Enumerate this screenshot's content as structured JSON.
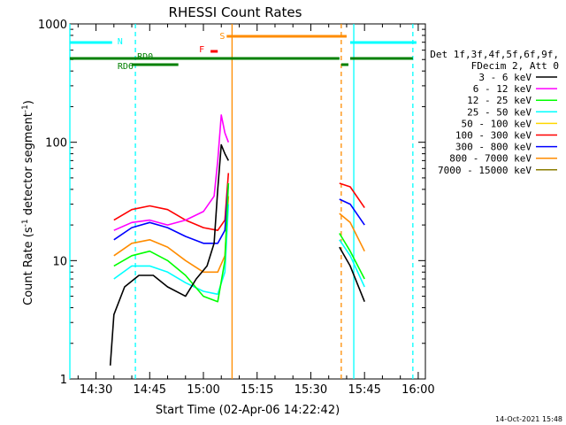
{
  "chart_data": {
    "type": "line",
    "title": "RHESSI Count Rates",
    "xlabel": "Start Time (02-Apr-06 14:22:42)",
    "ylabel_main": "Count Rate (s",
    "ylabel_sup1": "-1",
    "ylabel_mid": " detector segment",
    "ylabel_sup2": "-1",
    "ylabel_end": ")",
    "x_scale": "time",
    "x_range": [
      "14:22:42",
      "16:02:00"
    ],
    "y_scale": "log",
    "y_range": [
      1,
      1000
    ],
    "x_ticks": [
      "14:30",
      "14:45",
      "15:00",
      "15:15",
      "15:30",
      "15:45",
      "16:00"
    ],
    "y_ticks": [
      "1",
      "10",
      "100",
      "1000"
    ],
    "legend": {
      "placement": "right",
      "header": [
        "Det 1f,3f,4f,5f,6f,9f,",
        "FDecim 2, Att 0"
      ],
      "entries": [
        {
          "label": "3 - 6 keV",
          "color": "#000000"
        },
        {
          "label": "6 - 12 keV",
          "color": "#ff00ff"
        },
        {
          "label": "12 - 25 keV",
          "color": "#00ff00"
        },
        {
          "label": "25 - 50 keV",
          "color": "#00ffff"
        },
        {
          "label": "50 - 100 keV",
          "color": "#ffd700"
        },
        {
          "label": "100 - 300 keV",
          "color": "#ff0000"
        },
        {
          "label": "300 - 800 keV",
          "color": "#0000ff"
        },
        {
          "label": "800 - 7000 keV",
          "color": "#ff8c00"
        },
        {
          "label": "7000 - 15000 keV",
          "color": "#8b7d00"
        }
      ]
    },
    "series": [
      {
        "name": "100 - 300 keV",
        "color": "#ff0000",
        "segments": [
          [
            [
              "14:35",
              22
            ],
            [
              "14:40",
              27
            ],
            [
              "14:45",
              29
            ],
            [
              "14:50",
              27
            ],
            [
              "14:55",
              22
            ],
            [
              "15:00",
              19
            ],
            [
              "15:04",
              18
            ],
            [
              "15:06",
              22
            ],
            [
              "15:07",
              55
            ]
          ],
          [
            [
              "15:38",
              45
            ],
            [
              "15:41",
              42
            ],
            [
              "15:45",
              28
            ]
          ]
        ]
      },
      {
        "name": "300 - 800 keV",
        "color": "#0000ff",
        "segments": [
          [
            [
              "14:35",
              15
            ],
            [
              "14:40",
              19
            ],
            [
              "14:45",
              21
            ],
            [
              "14:50",
              19
            ],
            [
              "14:55",
              16
            ],
            [
              "15:00",
              14
            ],
            [
              "15:04",
              14
            ],
            [
              "15:06",
              18
            ],
            [
              "15:07",
              45
            ]
          ],
          [
            [
              "15:38",
              33
            ],
            [
              "15:41",
              30
            ],
            [
              "15:45",
              20
            ]
          ]
        ]
      },
      {
        "name": "6 - 12 keV",
        "color": "#ff00ff",
        "segments": [
          [
            [
              "14:35",
              18
            ],
            [
              "14:40",
              21
            ],
            [
              "14:45",
              22
            ],
            [
              "14:50",
              20
            ],
            [
              "14:55",
              22
            ],
            [
              "15:00",
              26
            ],
            [
              "15:03",
              35
            ],
            [
              "15:04",
              70
            ],
            [
              "15:05",
              170
            ],
            [
              "15:06",
              120
            ],
            [
              "15:07",
              100
            ]
          ]
        ]
      },
      {
        "name": "800 - 7000 keV",
        "color": "#ff8c00",
        "segments": [
          [
            [
              "14:35",
              11
            ],
            [
              "14:40",
              14
            ],
            [
              "14:45",
              15
            ],
            [
              "14:50",
              13
            ],
            [
              "14:55",
              10
            ],
            [
              "15:00",
              8
            ],
            [
              "15:04",
              8
            ],
            [
              "15:06",
              11
            ],
            [
              "15:07",
              35
            ]
          ],
          [
            [
              "15:38",
              25
            ],
            [
              "15:41",
              21
            ],
            [
              "15:45",
              12
            ]
          ]
        ]
      },
      {
        "name": "25 - 50 keV",
        "color": "#00ffff",
        "segments": [
          [
            [
              "14:35",
              7
            ],
            [
              "14:40",
              9
            ],
            [
              "14:45",
              9
            ],
            [
              "14:50",
              8
            ],
            [
              "14:55",
              6.5
            ],
            [
              "15:00",
              5.5
            ],
            [
              "15:04",
              5.2
            ],
            [
              "15:06",
              8
            ],
            [
              "15:07",
              30
            ]
          ],
          [
            [
              "15:38",
              15
            ],
            [
              "15:41",
              11
            ],
            [
              "15:45",
              6
            ]
          ]
        ]
      },
      {
        "name": "12 - 25 keV",
        "color": "#00ff00",
        "segments": [
          [
            [
              "14:35",
              9
            ],
            [
              "14:40",
              11
            ],
            [
              "14:45",
              12
            ],
            [
              "14:50",
              10
            ],
            [
              "14:55",
              7.5
            ],
            [
              "15:00",
              5
            ],
            [
              "15:04",
              4.5
            ],
            [
              "15:06",
              10
            ],
            [
              "15:07",
              45
            ]
          ],
          [
            [
              "15:38",
              17
            ],
            [
              "15:41",
              12
            ],
            [
              "15:45",
              7
            ]
          ]
        ]
      },
      {
        "name": "3 - 6 keV",
        "color": "#000000",
        "segments": [
          [
            [
              "14:34",
              1.3
            ],
            [
              "14:35",
              3.5
            ],
            [
              "14:38",
              6
            ],
            [
              "14:42",
              7.5
            ],
            [
              "14:46",
              7.5
            ],
            [
              "14:50",
              6
            ],
            [
              "14:55",
              5
            ],
            [
              "14:58",
              7
            ],
            [
              "15:01",
              9
            ],
            [
              "15:03",
              14
            ],
            [
              "15:04",
              40
            ],
            [
              "15:05",
              95
            ],
            [
              "15:06",
              80
            ],
            [
              "15:07",
              70
            ]
          ],
          [
            [
              "15:38",
              13
            ],
            [
              "15:41",
              9
            ],
            [
              "15:45",
              4.5
            ]
          ]
        ]
      }
    ],
    "attenuator_bars": [
      {
        "label": "N",
        "color": "#00ffff",
        "start": "14:22:42",
        "end": "14:34:30"
      },
      {
        "label": "",
        "color": "#00ffff",
        "start": "15:41:00",
        "end": "15:59:30"
      },
      {
        "label": "S",
        "color": "#ff8c00",
        "start": "15:06:30",
        "end": "15:40:00"
      },
      {
        "label": "F",
        "color": "#ff0000",
        "start": "15:02:00",
        "end": "15:04:00"
      },
      {
        "label": "RD0",
        "color": "#008000",
        "start": "14:22:42",
        "end": "15:58:30"
      },
      {
        "label": "RD6",
        "color": "#008000",
        "start": "14:40:00",
        "end": "14:53:00"
      }
    ],
    "vertical_lines": [
      {
        "time": "14:22:42",
        "color": "#00ffff",
        "style": "solid"
      },
      {
        "time": "14:41:00",
        "color": "#00ffff",
        "style": "dashed"
      },
      {
        "time": "15:08:00",
        "color": "#ff8c00",
        "style": "solid"
      },
      {
        "time": "15:38:30",
        "color": "#ff8c00",
        "style": "dashed"
      },
      {
        "time": "15:42:00",
        "color": "#00ffff",
        "style": "solid"
      },
      {
        "time": "15:58:30",
        "color": "#00ffff",
        "style": "dashed"
      }
    ]
  },
  "footer_timestamp": "14-Oct-2021 15:48"
}
